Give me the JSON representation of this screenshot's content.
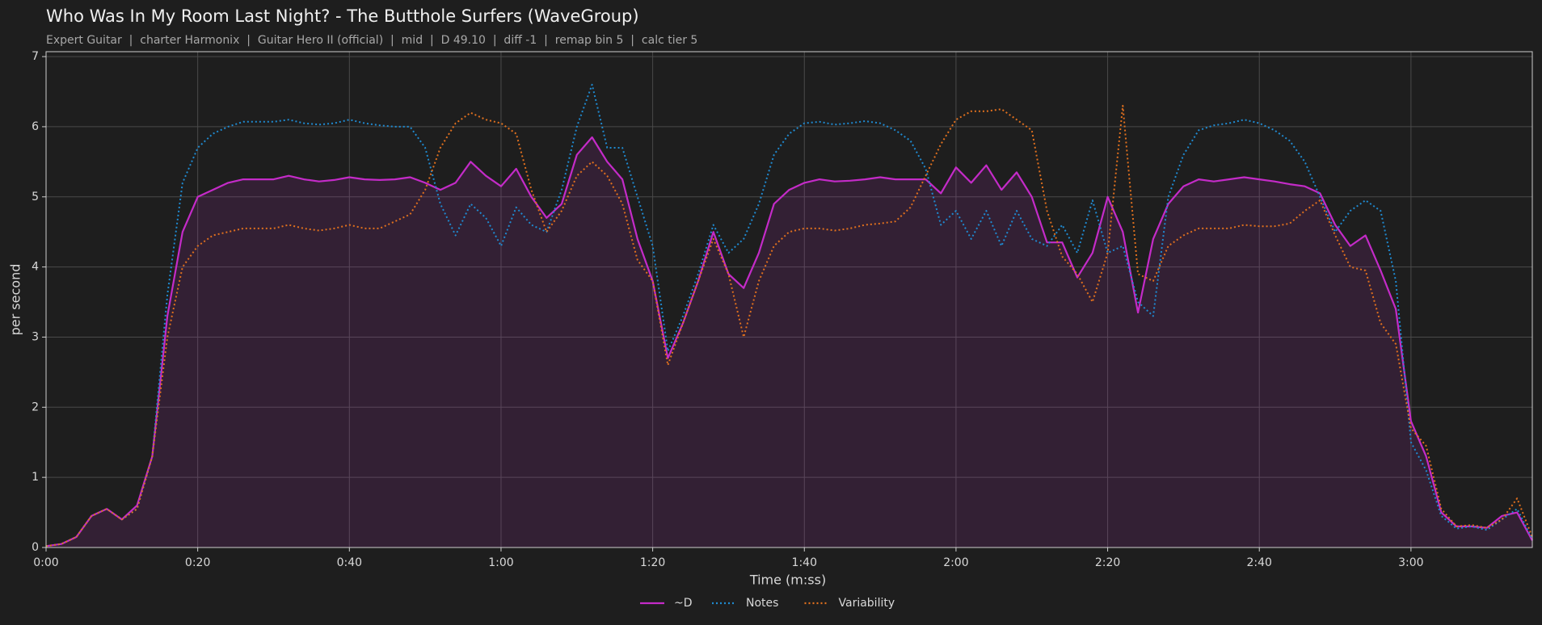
{
  "chart_data": {
    "type": "line",
    "title": "Who Was In My Room Last Night? - The Butthole Surfers (WaveGroup)",
    "subtitle": "Expert Guitar  |  charter Harmonix  |  Guitar Hero II (official)  |  mid  |  D 49.10  |  diff -1  |  remap bin 5  |  calc tier 5",
    "x_label": "Time (m:ss)",
    "y_label": "per second",
    "x": [
      0,
      2,
      4,
      6,
      8,
      10,
      12,
      14,
      16,
      18,
      20,
      22,
      24,
      26,
      28,
      30,
      32,
      34,
      36,
      38,
      40,
      42,
      44,
      46,
      48,
      50,
      52,
      54,
      56,
      58,
      60,
      62,
      64,
      66,
      68,
      70,
      72,
      74,
      76,
      78,
      80,
      82,
      84,
      86,
      88,
      90,
      92,
      94,
      96,
      98,
      100,
      102,
      104,
      106,
      108,
      110,
      112,
      114,
      116,
      118,
      120,
      122,
      124,
      126,
      128,
      130,
      132,
      134,
      136,
      138,
      140,
      142,
      144,
      146,
      148,
      150,
      152,
      154,
      156,
      158,
      160,
      162,
      164,
      166,
      168,
      170,
      172,
      174,
      176,
      178,
      180,
      182,
      184,
      186,
      188,
      190,
      192,
      194,
      196
    ],
    "series": [
      {
        "name": "~D",
        "color": "#c42bc8",
        "style": "solid",
        "fill": true,
        "values": [
          0.02,
          0.05,
          0.15,
          0.45,
          0.55,
          0.4,
          0.6,
          1.3,
          3.3,
          4.5,
          5.0,
          5.1,
          5.2,
          5.25,
          5.25,
          5.25,
          5.3,
          5.25,
          5.22,
          5.24,
          5.28,
          5.25,
          5.24,
          5.25,
          5.28,
          5.2,
          5.1,
          5.2,
          5.5,
          5.3,
          5.15,
          5.4,
          5.0,
          4.7,
          4.9,
          5.6,
          5.85,
          5.5,
          5.25,
          4.4,
          3.8,
          2.7,
          3.2,
          3.8,
          4.5,
          3.9,
          3.7,
          4.2,
          4.9,
          5.1,
          5.2,
          5.25,
          5.22,
          5.23,
          5.25,
          5.28,
          5.25,
          5.25,
          5.25,
          5.05,
          5.42,
          5.2,
          5.45,
          5.1,
          5.35,
          5.0,
          4.35,
          4.35,
          3.85,
          4.2,
          5.0,
          4.5,
          3.35,
          4.4,
          4.9,
          5.15,
          5.25,
          5.22,
          5.25,
          5.28,
          5.25,
          5.22,
          5.18,
          5.15,
          5.05,
          4.6,
          4.3,
          4.45,
          3.95,
          3.4,
          1.8,
          1.3,
          0.5,
          0.3,
          0.3,
          0.28,
          0.45,
          0.5,
          0.1
        ]
      },
      {
        "name": "Notes",
        "color": "#1f8ad0",
        "style": "dotted",
        "fill": false,
        "values": [
          0.02,
          0.05,
          0.15,
          0.45,
          0.55,
          0.4,
          0.55,
          1.3,
          3.6,
          5.2,
          5.7,
          5.9,
          6.0,
          6.07,
          6.07,
          6.07,
          6.1,
          6.05,
          6.03,
          6.05,
          6.1,
          6.05,
          6.02,
          6.0,
          6.0,
          5.7,
          4.9,
          4.45,
          4.9,
          4.7,
          4.3,
          4.85,
          4.6,
          4.5,
          5.1,
          6.0,
          6.6,
          5.7,
          5.7,
          5.0,
          4.3,
          2.8,
          3.3,
          3.9,
          4.6,
          4.2,
          4.4,
          4.9,
          5.6,
          5.9,
          6.05,
          6.07,
          6.03,
          6.05,
          6.08,
          6.05,
          5.95,
          5.8,
          5.4,
          4.6,
          4.8,
          4.4,
          4.8,
          4.3,
          4.8,
          4.4,
          4.3,
          4.6,
          4.2,
          4.95,
          4.2,
          4.3,
          3.5,
          3.3,
          5.0,
          5.6,
          5.95,
          6.02,
          6.05,
          6.1,
          6.05,
          5.95,
          5.8,
          5.5,
          5.0,
          4.5,
          4.8,
          4.95,
          4.8,
          3.8,
          1.5,
          1.1,
          0.45,
          0.27,
          0.3,
          0.25,
          0.4,
          0.55,
          0.12
        ]
      },
      {
        "name": "Variability",
        "color": "#e0701e",
        "style": "dotted",
        "fill": false,
        "values": [
          0.02,
          0.05,
          0.15,
          0.45,
          0.55,
          0.4,
          0.55,
          1.3,
          3.0,
          4.0,
          4.3,
          4.45,
          4.5,
          4.55,
          4.55,
          4.55,
          4.6,
          4.55,
          4.52,
          4.55,
          4.6,
          4.55,
          4.55,
          4.65,
          4.75,
          5.1,
          5.7,
          6.05,
          6.2,
          6.1,
          6.05,
          5.9,
          5.1,
          4.5,
          4.8,
          5.3,
          5.5,
          5.3,
          4.9,
          4.1,
          3.8,
          2.6,
          3.2,
          3.8,
          4.4,
          3.9,
          3.0,
          3.8,
          4.3,
          4.5,
          4.55,
          4.55,
          4.52,
          4.55,
          4.6,
          4.62,
          4.65,
          4.85,
          5.3,
          5.75,
          6.1,
          6.22,
          6.22,
          6.25,
          6.1,
          5.95,
          4.8,
          4.15,
          3.9,
          3.5,
          4.2,
          6.3,
          3.9,
          3.8,
          4.3,
          4.45,
          4.55,
          4.55,
          4.55,
          4.6,
          4.58,
          4.58,
          4.62,
          4.8,
          4.95,
          4.45,
          4.0,
          3.95,
          3.2,
          2.9,
          1.7,
          1.45,
          0.55,
          0.3,
          0.32,
          0.28,
          0.4,
          0.7,
          0.15
        ]
      }
    ],
    "xlim": [
      0,
      196
    ],
    "ylim": [
      0,
      7.07
    ],
    "xticks": [
      {
        "value": 0,
        "label": "0:00"
      },
      {
        "value": 20,
        "label": "0:20"
      },
      {
        "value": 40,
        "label": "0:40"
      },
      {
        "value": 60,
        "label": "1:00"
      },
      {
        "value": 80,
        "label": "1:20"
      },
      {
        "value": 100,
        "label": "1:40"
      },
      {
        "value": 120,
        "label": "2:00"
      },
      {
        "value": 140,
        "label": "2:20"
      },
      {
        "value": 160,
        "label": "2:40"
      },
      {
        "value": 180,
        "label": "3:00"
      }
    ],
    "yticks": [
      0,
      1,
      2,
      3,
      4,
      5,
      6,
      7
    ],
    "grid": true,
    "legend": "bottom"
  }
}
